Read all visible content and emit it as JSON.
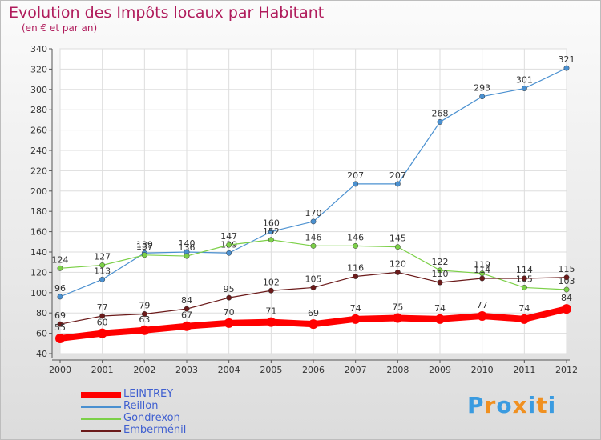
{
  "title": "Evolution des Impôts locaux par Habitant",
  "subtitle": "(en € et par an)",
  "logo": {
    "text": "Proxiti",
    "colors": [
      "#3a9be0",
      "#f09020",
      "#3a9be0",
      "#f09020",
      "#3a9be0",
      "#f09020",
      "#3a9be0"
    ]
  },
  "chart_data": {
    "type": "line",
    "title": "Evolution des Impôts locaux par Habitant",
    "subtitle": "(en € et par an)",
    "x": [
      "2000",
      "2001",
      "2002",
      "2003",
      "2004",
      "2005",
      "2006",
      "2007",
      "2008",
      "2009",
      "2010",
      "2011",
      "2012"
    ],
    "ylim": [
      40,
      340
    ],
    "yticks": [
      40,
      60,
      80,
      100,
      120,
      140,
      160,
      180,
      200,
      220,
      240,
      260,
      280,
      300,
      320,
      340
    ],
    "grid": true,
    "legend_position": "bottom-left",
    "series": [
      {
        "name": "LEINTREY",
        "color": "#ff0000",
        "width": 8,
        "values": [
          55,
          60,
          63,
          67,
          70,
          71,
          69,
          74,
          75,
          74,
          77,
          74,
          84
        ]
      },
      {
        "name": "Reillon",
        "color": "#4a90d0",
        "width": 1.2,
        "values": [
          96,
          113,
          139,
          140,
          139,
          160,
          170,
          207,
          207,
          268,
          293,
          301,
          321
        ]
      },
      {
        "name": "Gondrexon",
        "color": "#7cd048",
        "width": 1.2,
        "values": [
          124,
          127,
          137,
          136,
          147,
          152,
          146,
          146,
          145,
          122,
          119,
          105,
          103
        ]
      },
      {
        "name": "Emberménil",
        "color": "#6b1a1a",
        "width": 1.2,
        "values": [
          69,
          77,
          79,
          84,
          95,
          102,
          105,
          116,
          120,
          110,
          114,
          114,
          115
        ]
      }
    ]
  }
}
